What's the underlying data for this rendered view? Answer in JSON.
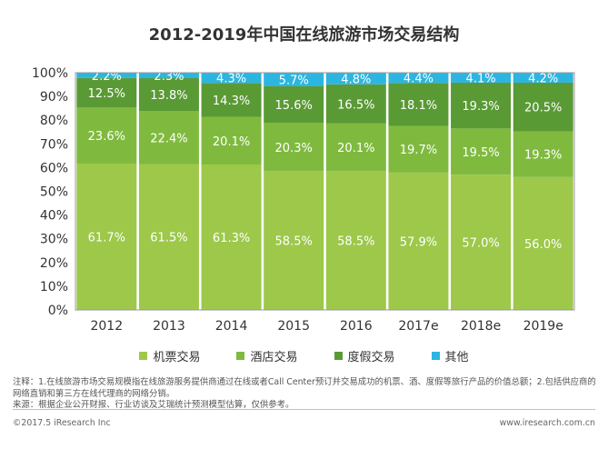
{
  "title": "2012-2019年中国在线旅游市场交易结构",
  "chart_data": {
    "type": "bar",
    "stacked": true,
    "percent": true,
    "title": "2012-2019年中国在线旅游市场交易结构",
    "categories": [
      "2012",
      "2013",
      "2014",
      "2015",
      "2016",
      "2017e",
      "2018e",
      "2019e"
    ],
    "ylim": [
      0,
      100
    ],
    "yticks": [
      "0%",
      "10%",
      "20%",
      "30%",
      "40%",
      "50%",
      "60%",
      "70%",
      "80%",
      "90%",
      "100%"
    ],
    "legend_position": "bottom",
    "grid": false,
    "series": [
      {
        "name": "机票交易",
        "color": "#9dc84a",
        "values": [
          61.7,
          61.5,
          61.3,
          58.5,
          58.5,
          57.9,
          57.0,
          56.0
        ],
        "labels": [
          "61.7%",
          "61.5%",
          "61.3%",
          "58.5%",
          "58.5%",
          "57.9%",
          "57.0%",
          "56.0%"
        ]
      },
      {
        "name": "酒店交易",
        "color": "#7fba3f",
        "values": [
          23.6,
          22.4,
          20.1,
          20.3,
          20.1,
          19.7,
          19.5,
          19.3
        ],
        "labels": [
          "23.6%",
          "22.4%",
          "20.1%",
          "20.3%",
          "20.1%",
          "19.7%",
          "19.5%",
          "19.3%"
        ]
      },
      {
        "name": "度假交易",
        "color": "#5a9a35",
        "values": [
          12.5,
          13.8,
          14.3,
          15.6,
          16.5,
          18.1,
          19.3,
          20.5
        ],
        "labels": [
          "12.5%",
          "13.8%",
          "14.3%",
          "15.6%",
          "16.5%",
          "18.1%",
          "19.3%",
          "20.5%"
        ]
      },
      {
        "name": "其他",
        "color": "#2cb5e0",
        "values": [
          2.2,
          2.3,
          4.3,
          5.7,
          4.8,
          4.4,
          4.1,
          4.2
        ],
        "labels": [
          "2.2%",
          "2.3%",
          "4.3%",
          "5.7%",
          "4.8%",
          "4.4%",
          "4.1%",
          "4.2%"
        ]
      }
    ]
  },
  "notes": {
    "line1": "注释：1.在线旅游市场交易规模指在线旅游服务提供商通过在线或者Call Center预订并交易成功的机票、酒、度假等旅行产品的价值总额；2.包括供应商的",
    "line2": "网络直销和第三方在线代理商的网络分销。",
    "line3": "来源：根据企业公开财报、行业访谈及艾瑞统计预测模型估算，仅供参考。"
  },
  "footer": {
    "copyright": "©2017.5 iResearch Inc",
    "website": "www.iresearch.com.cn"
  }
}
